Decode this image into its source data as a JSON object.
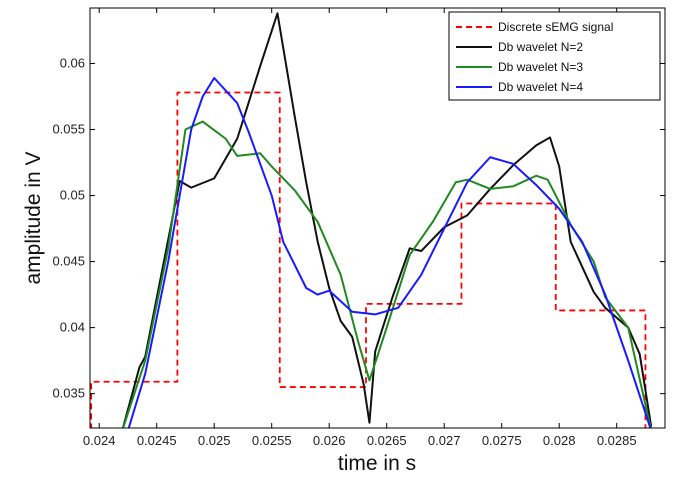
{
  "chart_data": {
    "type": "line",
    "title": "",
    "xlabel": "time in s",
    "ylabel": "amplitude in V",
    "xlim": [
      0.02392,
      0.02892
    ],
    "ylim": [
      0.0324,
      0.0642
    ],
    "x_ticks": [
      0.024,
      0.0245,
      0.025,
      0.0255,
      0.026,
      0.0265,
      0.027,
      0.0275,
      0.028,
      0.0285
    ],
    "x_tick_labels": [
      "0.024",
      "0.0245",
      "0.025",
      "0.0255",
      "0.026",
      "0.0265",
      "0.027",
      "0.0275",
      "0.028",
      "0.0285"
    ],
    "y_ticks": [
      0.035,
      0.04,
      0.045,
      0.05,
      0.055,
      0.06
    ],
    "y_tick_labels": [
      "0.035",
      "0.04",
      "0.045",
      "0.05",
      "0.055",
      "0.06"
    ],
    "grid": false,
    "legend_position": "top-right",
    "series": [
      {
        "name": "Discrete sEMG signal",
        "color": "#ff0000",
        "dash": "dashed",
        "style": "step",
        "points": [
          [
            0.02393,
            0.0323
          ],
          [
            0.02393,
            0.0359
          ],
          [
            0.02468,
            0.0359
          ],
          [
            0.02468,
            0.0578
          ],
          [
            0.02557,
            0.0578
          ],
          [
            0.02557,
            0.0355
          ],
          [
            0.02632,
            0.0355
          ],
          [
            0.02632,
            0.0418
          ],
          [
            0.02715,
            0.0418
          ],
          [
            0.02715,
            0.0494
          ],
          [
            0.02797,
            0.0494
          ],
          [
            0.02797,
            0.0413
          ],
          [
            0.02875,
            0.0413
          ],
          [
            0.02875,
            0.0323
          ]
        ]
      },
      {
        "name": "Db wavelet N=2",
        "color": "#111111",
        "dash": "solid",
        "style": "line",
        "points": [
          [
            0.0242,
            0.0322
          ],
          [
            0.02435,
            0.037
          ],
          [
            0.0244,
            0.0378
          ],
          [
            0.0247,
            0.0511
          ],
          [
            0.0248,
            0.0506
          ],
          [
            0.025,
            0.0513
          ],
          [
            0.0252,
            0.0543
          ],
          [
            0.0254,
            0.0598
          ],
          [
            0.02555,
            0.0638
          ],
          [
            0.0257,
            0.056
          ],
          [
            0.0258,
            0.051
          ],
          [
            0.0259,
            0.0465
          ],
          [
            0.026,
            0.043
          ],
          [
            0.0261,
            0.0405
          ],
          [
            0.0262,
            0.0393
          ],
          [
            0.0263,
            0.0357
          ],
          [
            0.02635,
            0.0328
          ],
          [
            0.0264,
            0.0382
          ],
          [
            0.02655,
            0.0423
          ],
          [
            0.0267,
            0.046
          ],
          [
            0.0268,
            0.0458
          ],
          [
            0.027,
            0.0476
          ],
          [
            0.0272,
            0.0485
          ],
          [
            0.0274,
            0.0505
          ],
          [
            0.0276,
            0.0523
          ],
          [
            0.0278,
            0.0538
          ],
          [
            0.02792,
            0.0544
          ],
          [
            0.028,
            0.0522
          ],
          [
            0.0281,
            0.0465
          ],
          [
            0.0283,
            0.0427
          ],
          [
            0.0284,
            0.0415
          ],
          [
            0.0286,
            0.04
          ],
          [
            0.0287,
            0.038
          ],
          [
            0.0288,
            0.0325
          ]
        ]
      },
      {
        "name": "Db wavelet N=3",
        "color": "#1f8a1f",
        "dash": "solid",
        "style": "line",
        "points": [
          [
            0.0242,
            0.0322
          ],
          [
            0.0244,
            0.0375
          ],
          [
            0.0246,
            0.046
          ],
          [
            0.02475,
            0.055
          ],
          [
            0.0249,
            0.0556
          ],
          [
            0.0251,
            0.0543
          ],
          [
            0.0252,
            0.053
          ],
          [
            0.0254,
            0.0532
          ],
          [
            0.0255,
            0.0522
          ],
          [
            0.0257,
            0.0504
          ],
          [
            0.0259,
            0.048
          ],
          [
            0.0261,
            0.044
          ],
          [
            0.02625,
            0.039
          ],
          [
            0.02635,
            0.036
          ],
          [
            0.0265,
            0.04
          ],
          [
            0.0267,
            0.0455
          ],
          [
            0.0269,
            0.048
          ],
          [
            0.0271,
            0.051
          ],
          [
            0.0272,
            0.0512
          ],
          [
            0.0274,
            0.0505
          ],
          [
            0.0276,
            0.0507
          ],
          [
            0.0278,
            0.0515
          ],
          [
            0.0279,
            0.0512
          ],
          [
            0.0281,
            0.0478
          ],
          [
            0.0283,
            0.045
          ],
          [
            0.0284,
            0.0423
          ],
          [
            0.0286,
            0.04
          ],
          [
            0.0288,
            0.0322
          ]
        ]
      },
      {
        "name": "Db wavelet N=4",
        "color": "#1a1aff",
        "dash": "solid",
        "style": "line",
        "points": [
          [
            0.02425,
            0.0322
          ],
          [
            0.0244,
            0.0365
          ],
          [
            0.0246,
            0.045
          ],
          [
            0.0248,
            0.055
          ],
          [
            0.0249,
            0.0575
          ],
          [
            0.025,
            0.0589
          ],
          [
            0.0252,
            0.057
          ],
          [
            0.0253,
            0.0548
          ],
          [
            0.0255,
            0.05
          ],
          [
            0.0256,
            0.0465
          ],
          [
            0.0258,
            0.043
          ],
          [
            0.0259,
            0.0425
          ],
          [
            0.026,
            0.0428
          ],
          [
            0.0262,
            0.0412
          ],
          [
            0.0264,
            0.041
          ],
          [
            0.0266,
            0.0415
          ],
          [
            0.0268,
            0.044
          ],
          [
            0.027,
            0.0475
          ],
          [
            0.0272,
            0.051
          ],
          [
            0.0274,
            0.0529
          ],
          [
            0.0276,
            0.0524
          ],
          [
            0.0278,
            0.0508
          ],
          [
            0.028,
            0.049
          ],
          [
            0.0282,
            0.0465
          ],
          [
            0.0284,
            0.0425
          ],
          [
            0.0286,
            0.0375
          ],
          [
            0.0288,
            0.0322
          ]
        ]
      }
    ]
  }
}
